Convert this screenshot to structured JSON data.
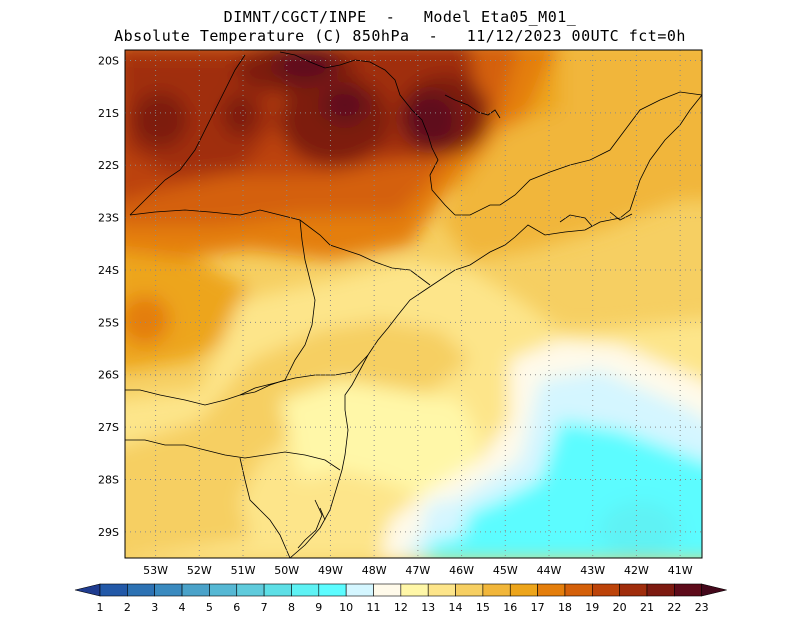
{
  "header": {
    "line1": "DIMNT/CGCT/INPE  -   Model Eta05_M01_",
    "line2": "Absolute Temperature (C) 850hPa  -   11/12/2023 00UTC fct=0h"
  },
  "map": {
    "lat_labels": [
      "20S",
      "21S",
      "22S",
      "23S",
      "24S",
      "25S",
      "26S",
      "27S",
      "28S",
      "29S"
    ],
    "lon_labels": [
      "53W",
      "52W",
      "51W",
      "50W",
      "49W",
      "48W",
      "47W",
      "46W",
      "45W",
      "44W",
      "43W",
      "42W",
      "41W"
    ],
    "lon_range": [
      -53.7,
      -40.5
    ],
    "lat_range": [
      -29.5,
      -19.8
    ],
    "grid": true
  },
  "colorbar": {
    "values": [
      "1",
      "2",
      "3",
      "4",
      "5",
      "6",
      "7",
      "8",
      "9",
      "10",
      "11",
      "12",
      "13",
      "14",
      "15",
      "16",
      "17",
      "18",
      "19",
      "20",
      "21",
      "22",
      "23"
    ],
    "colors": [
      "#1f3c8f",
      "#2359a8",
      "#2d72b3",
      "#3a8abf",
      "#4aa2c9",
      "#56b8d4",
      "#5fcbdc",
      "#5ddfe6",
      "#5ef2f4",
      "#5cfcff",
      "#d4f6ff",
      "#fffaea",
      "#fff7a8",
      "#fde58a",
      "#f6cf62",
      "#f1b63a",
      "#eda51b",
      "#e47e0c",
      "#d4600a",
      "#bc4309",
      "#a02d0c",
      "#7d1a10",
      "#5e0b1a",
      "#44081b"
    ]
  }
}
